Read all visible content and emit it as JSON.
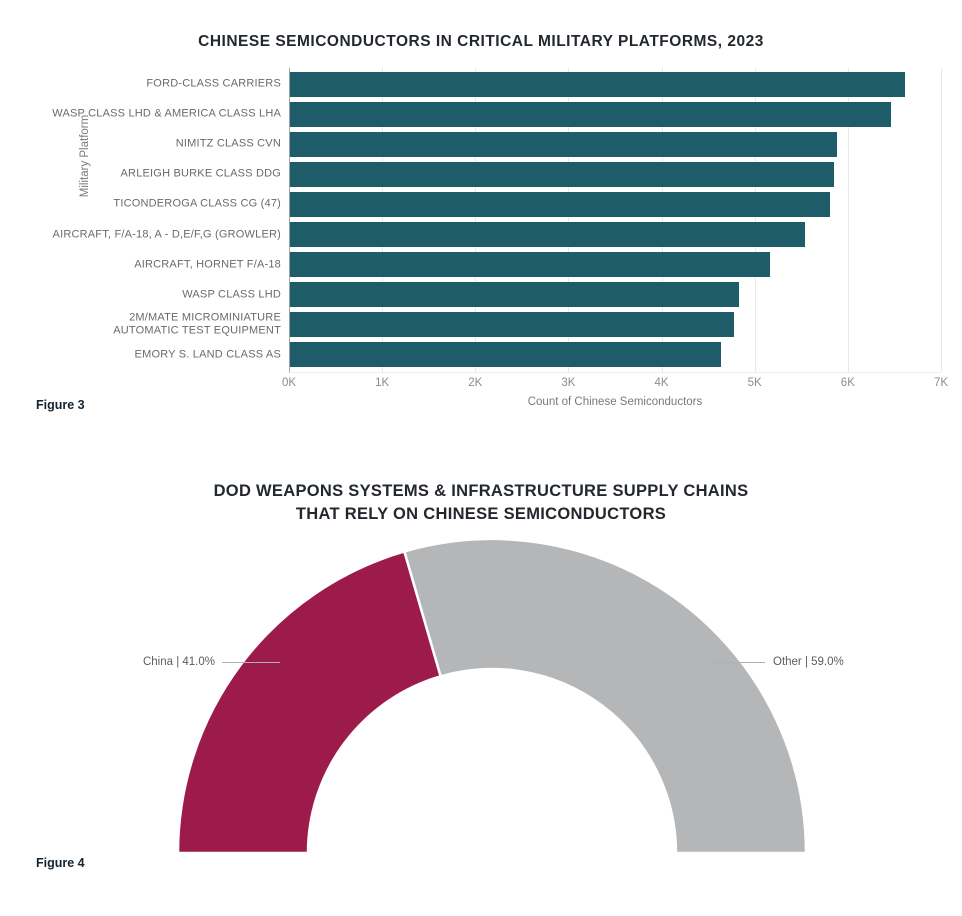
{
  "page": {
    "background": "#ffffff"
  },
  "chart_data": [
    {
      "type": "bar",
      "orientation": "horizontal",
      "title": "CHINESE SEMICONDUCTORS IN CRITICAL MILITARY PLATFORMS, 2023",
      "figure_label": "Figure 3",
      "xlabel": "Count of Chinese Semiconductors",
      "ylabel": "Military Platform",
      "xlim": [
        0,
        7000
      ],
      "xticks": [
        "0K",
        "1K",
        "2K",
        "3K",
        "4K",
        "5K",
        "6K",
        "7K"
      ],
      "grid": true,
      "bar_color": "#1d5c68",
      "categories": [
        "FORD-CLASS CARRIERS",
        "WASP CLASS LHD & AMERICA CLASS LHA",
        "NIMITZ CLASS CVN",
        "ARLEIGH BURKE CLASS DDG",
        "TICONDEROGA CLASS CG (47)",
        "AIRCRAFT, F/A-18, A - D,E/F,G (GROWLER)",
        "AIRCRAFT, HORNET F/A-18",
        "WASP CLASS LHD",
        "2M/MATE MICROMINIATURE\nAUTOMATIC TEST EQUIPMENT",
        "EMORY S. LAND CLASS AS"
      ],
      "values": [
        6600,
        6450,
        5870,
        5840,
        5800,
        5530,
        5150,
        4820,
        4770,
        4630
      ]
    },
    {
      "type": "pie",
      "subtype": "half-donut",
      "title_lines": [
        "DOD WEAPONS SYSTEMS & INFRASTRUCTURE SUPPLY CHAINS",
        "THAT RELY ON CHINESE SEMICONDUCTORS"
      ],
      "figure_label": "Figure 4",
      "legend_position": "side-callouts",
      "slices": [
        {
          "label": "China",
          "value": 41.0,
          "display": "China | 41.0%",
          "color": "#9c1b4a"
        },
        {
          "label": "Other",
          "value": 59.0,
          "display": "Other | 59.0%",
          "color": "#b4b6b8"
        }
      ]
    }
  ]
}
